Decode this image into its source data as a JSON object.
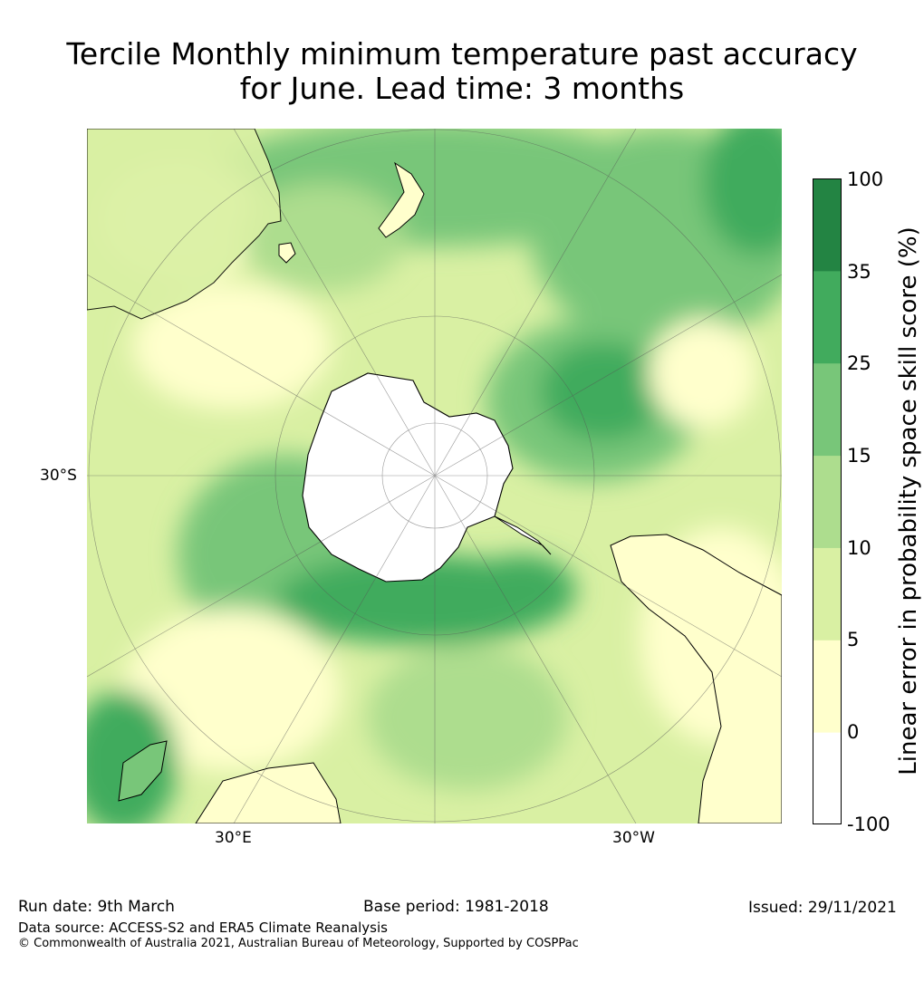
{
  "title": {
    "line1": "Tercile Monthly minimum temperature past accuracy",
    "line2": "for June. Lead time: 3 months"
  },
  "map": {
    "projection": "South polar stereographic",
    "labels": {
      "lat": "30°S",
      "lon_left": "30°E",
      "lon_right": "30°W"
    },
    "regions": [
      "Antarctica",
      "Australia",
      "New Zealand",
      "South America",
      "Africa",
      "Madagascar",
      "Tasmania"
    ]
  },
  "colorbar": {
    "label": "Linear error in probability space skill score (%)",
    "ticks": [
      "100",
      "35",
      "25",
      "15",
      "10",
      "5",
      "0",
      "-100"
    ],
    "bins": [
      {
        "range": "-100 to 0",
        "color": "#ffffff"
      },
      {
        "range": "0 to 5",
        "color": "#ffffcc"
      },
      {
        "range": "5 to 10",
        "color": "#d9f0a3"
      },
      {
        "range": "10 to 15",
        "color": "#addd8e"
      },
      {
        "range": "15 to 25",
        "color": "#78c679"
      },
      {
        "range": "25 to 35",
        "color": "#41ab5d"
      },
      {
        "range": "35 to 100",
        "color": "#238443"
      }
    ]
  },
  "footer": {
    "run_date": "Run date: 9th March",
    "base_period": "Base period: 1981-2018",
    "issued": "Issued: 29/11/2021",
    "data_source": "Data source: ACCESS-S2 and ERA5 Climate Reanalysis",
    "copyright": "© Commonwealth of Australia 2021, Australian Bureau of Meteorology, Supported by COSPPac"
  }
}
